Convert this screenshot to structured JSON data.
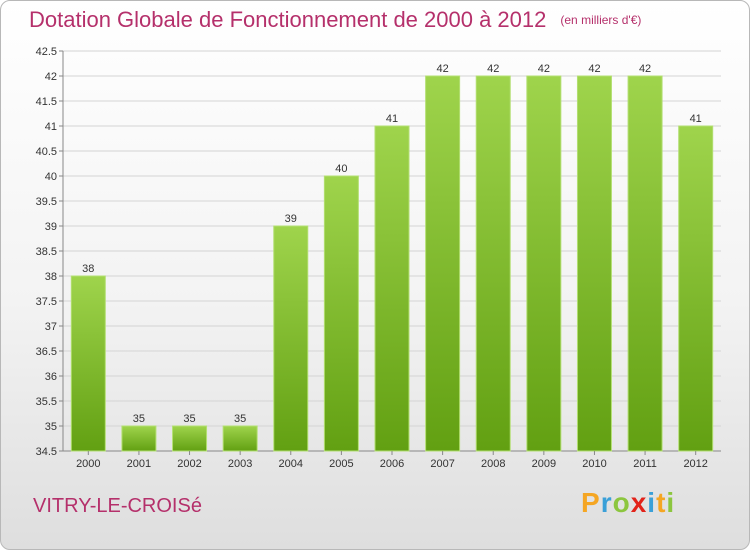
{
  "title": "Dotation Globale de Fonctionnement de 2000 à 2012",
  "subtitle": "(en milliers d'€)",
  "commune": "VITRY-LE-CROISé",
  "logo": {
    "letters": [
      "P",
      "r",
      "o",
      "x",
      "i",
      "t",
      "i"
    ],
    "colors": [
      "#f5a623",
      "#3aa0d8",
      "#8cc63f",
      "#e2231a",
      "#3aa0d8",
      "#f5a623",
      "#8cc63f"
    ]
  },
  "colors": {
    "bar": "#7dbd2e",
    "bar_light": "#9fd44c",
    "title": "#b5306b"
  },
  "chart_data": {
    "type": "bar",
    "categories": [
      "2000",
      "2001",
      "2002",
      "2003",
      "2004",
      "2005",
      "2006",
      "2007",
      "2008",
      "2009",
      "2010",
      "2011",
      "2012"
    ],
    "values": [
      38,
      35,
      35,
      35,
      39,
      40,
      41,
      42,
      42,
      42,
      42,
      42,
      41
    ],
    "ylim": [
      34.5,
      42.5
    ],
    "yticks": [
      "34.5",
      "35",
      "35.5",
      "36",
      "36.5",
      "37",
      "37.5",
      "38",
      "38.5",
      "39",
      "39.5",
      "40",
      "40.5",
      "41",
      "41.5",
      "42",
      "42.5"
    ],
    "grid": true
  }
}
